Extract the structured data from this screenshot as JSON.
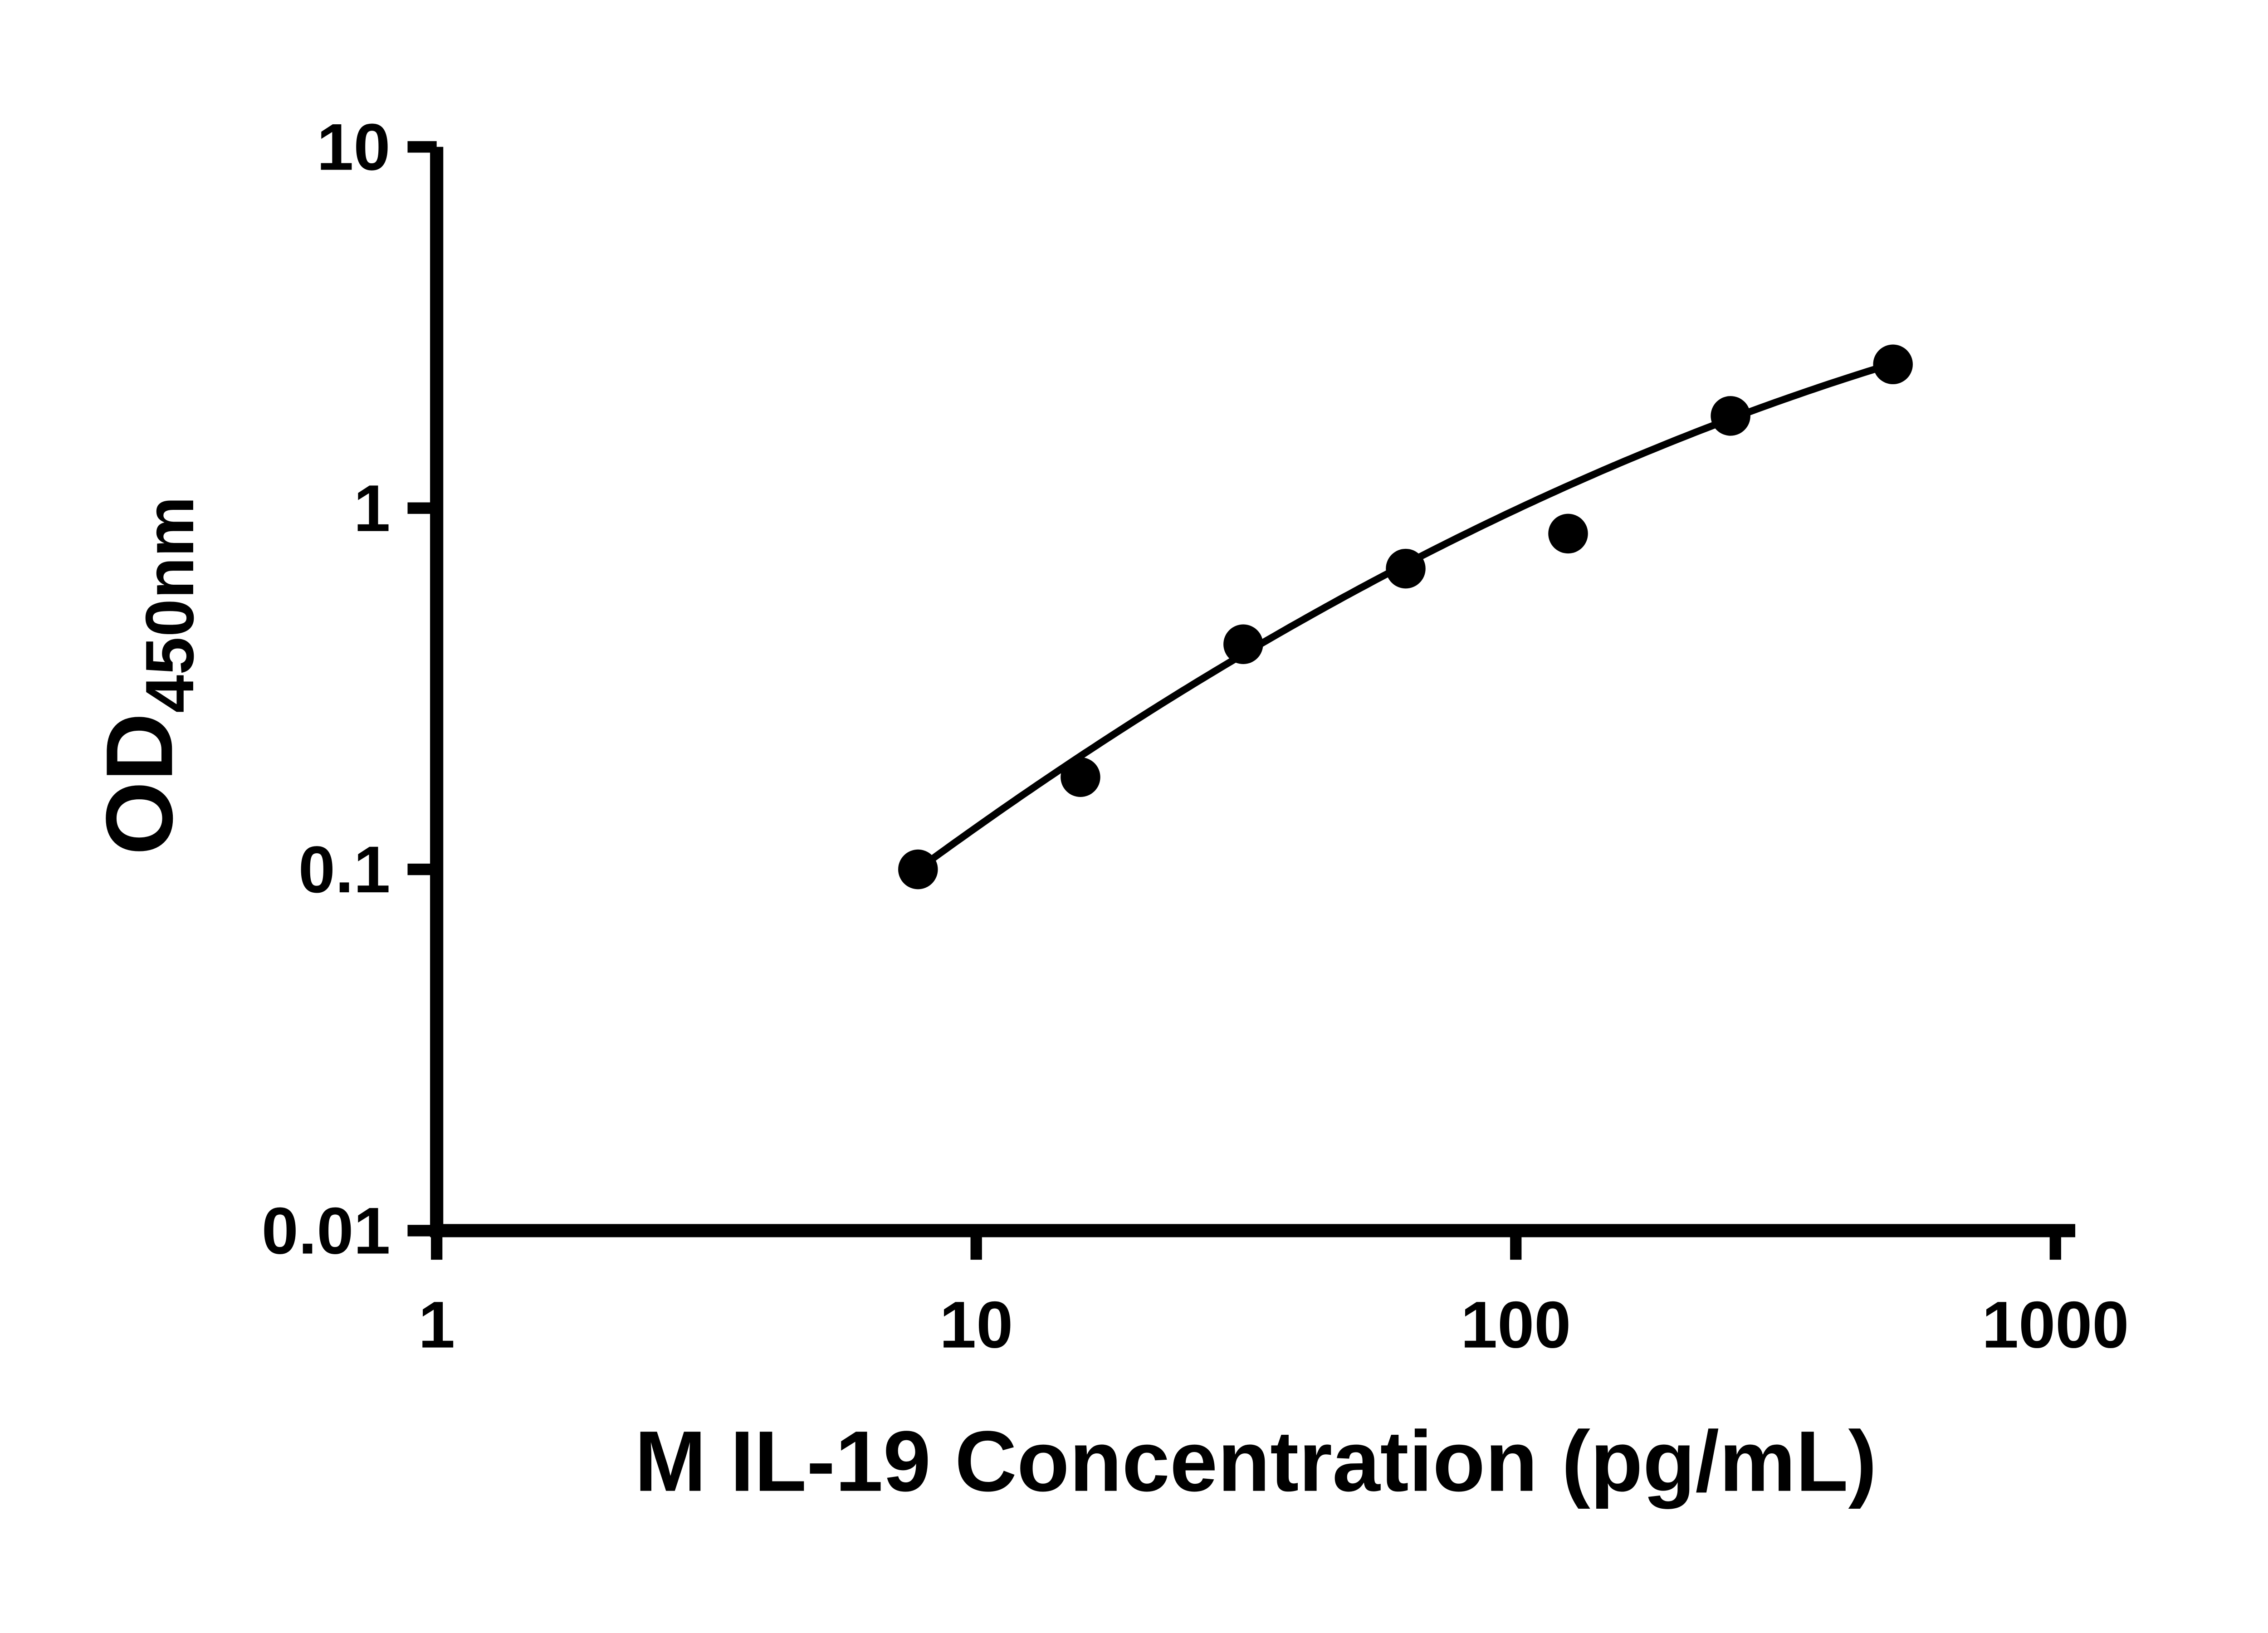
{
  "chart_data": {
    "type": "scatter",
    "xlabel": "M IL-19 Concentration (pg/mL)",
    "ylabel": "OD450nm",
    "ylabel_main": "OD",
    "ylabel_sub": "450nm",
    "x_scale": "log10",
    "y_scale": "log10",
    "xlim": [
      1,
      1000
    ],
    "ylim": [
      0.01,
      10
    ],
    "x_ticks": [
      1,
      10,
      100,
      1000
    ],
    "x_tick_labels": [
      "1",
      "10",
      "100",
      "1000"
    ],
    "y_ticks": [
      10,
      1,
      0.1,
      0.01
    ],
    "y_tick_labels": [
      "10",
      "1",
      "0.1",
      "0.01"
    ],
    "grid": false,
    "legend_position": "none",
    "points": {
      "x": [
        7.8,
        15.6,
        31.25,
        62.5,
        125,
        250,
        500
      ],
      "y": [
        0.1,
        0.18,
        0.42,
        0.68,
        0.85,
        1.8,
        2.5
      ]
    },
    "fit_curve": {
      "type": "quadratic_in_loglog",
      "coeffs": {
        "a0": -2.1175,
        "a1": 1.4108,
        "a2": -0.1771
      },
      "u_min": 0.892,
      "u_max": 2.699
    },
    "colors": {
      "marker": "#000000",
      "curve": "#000000",
      "axis": "#000000",
      "text": "#000000",
      "background": "#ffffff"
    }
  }
}
